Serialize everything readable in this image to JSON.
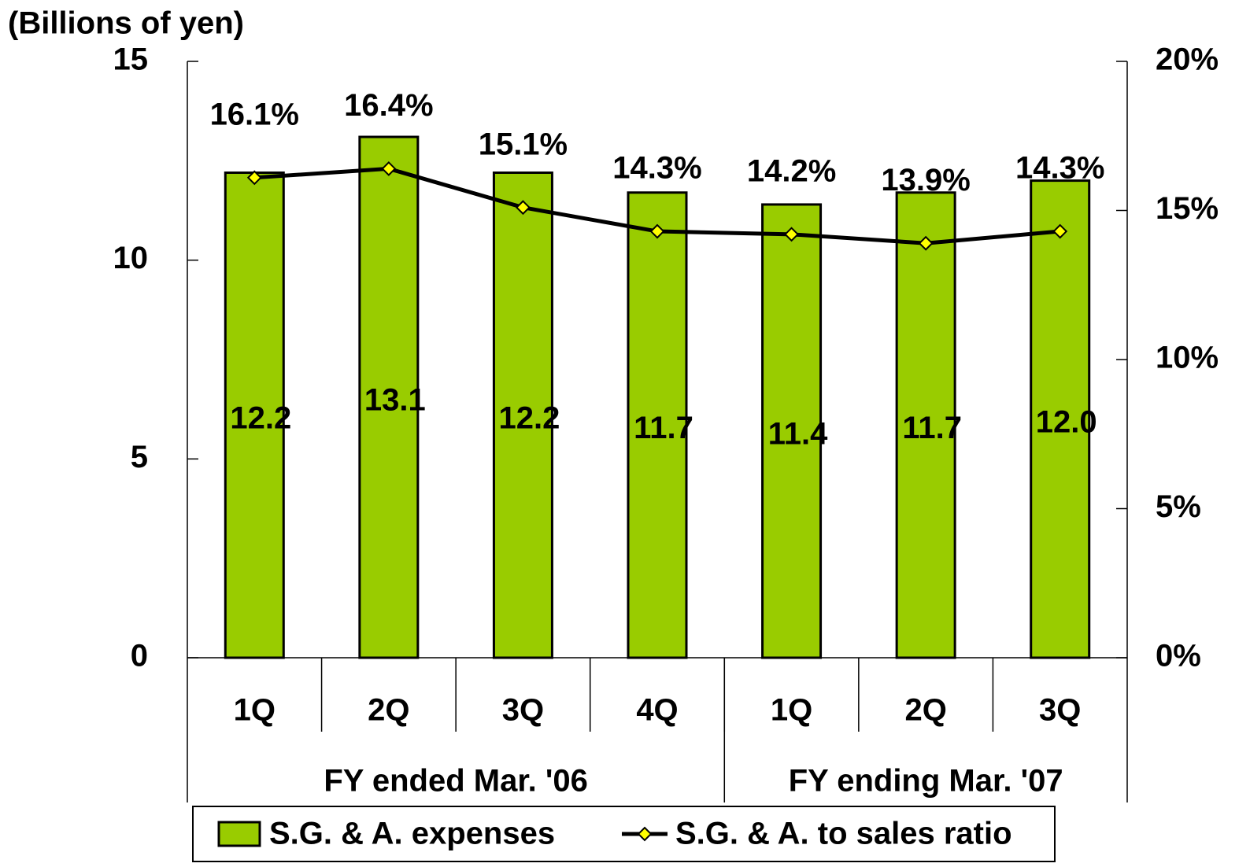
{
  "chart_data": {
    "type": "bar",
    "y_label": "(Billions of yen)",
    "categories": [
      "1Q",
      "2Q",
      "3Q",
      "4Q",
      "1Q",
      "2Q",
      "3Q"
    ],
    "groups": [
      "FY ended Mar. '06",
      "FY ending Mar. '07"
    ],
    "group_sizes": [
      4,
      3
    ],
    "series": [
      {
        "name": "S.G. & A. expenses",
        "type": "bar",
        "color": "#99cc00",
        "values": [
          12.2,
          13.1,
          12.2,
          11.7,
          11.4,
          11.7,
          12.0
        ],
        "value_labels": [
          "12.2",
          "13.1",
          "12.2",
          "11.7",
          "11.4",
          "11.7",
          "12.0"
        ]
      },
      {
        "name": "S.G. & A. to sales ratio",
        "type": "line",
        "axis": "y2",
        "color": "#000000",
        "marker_color": "#ffff00",
        "values": [
          16.1,
          16.4,
          15.1,
          14.3,
          14.2,
          13.9,
          14.3
        ],
        "value_labels": [
          "16.1%",
          "16.4%",
          "15.1%",
          "14.3%",
          "14.2%",
          "13.9%",
          "14.3%"
        ]
      }
    ],
    "ylim": [
      0,
      15
    ],
    "yticks": [
      0,
      5,
      10,
      15
    ],
    "y2lim": [
      0,
      20
    ],
    "y2ticks": [
      {
        "value": 0,
        "label": "0%"
      },
      {
        "value": 5,
        "label": "5%"
      },
      {
        "value": 10,
        "label": "10%"
      },
      {
        "value": 15,
        "label": "15%"
      },
      {
        "value": 20,
        "label": "20%"
      }
    ],
    "legend": "bottom"
  }
}
